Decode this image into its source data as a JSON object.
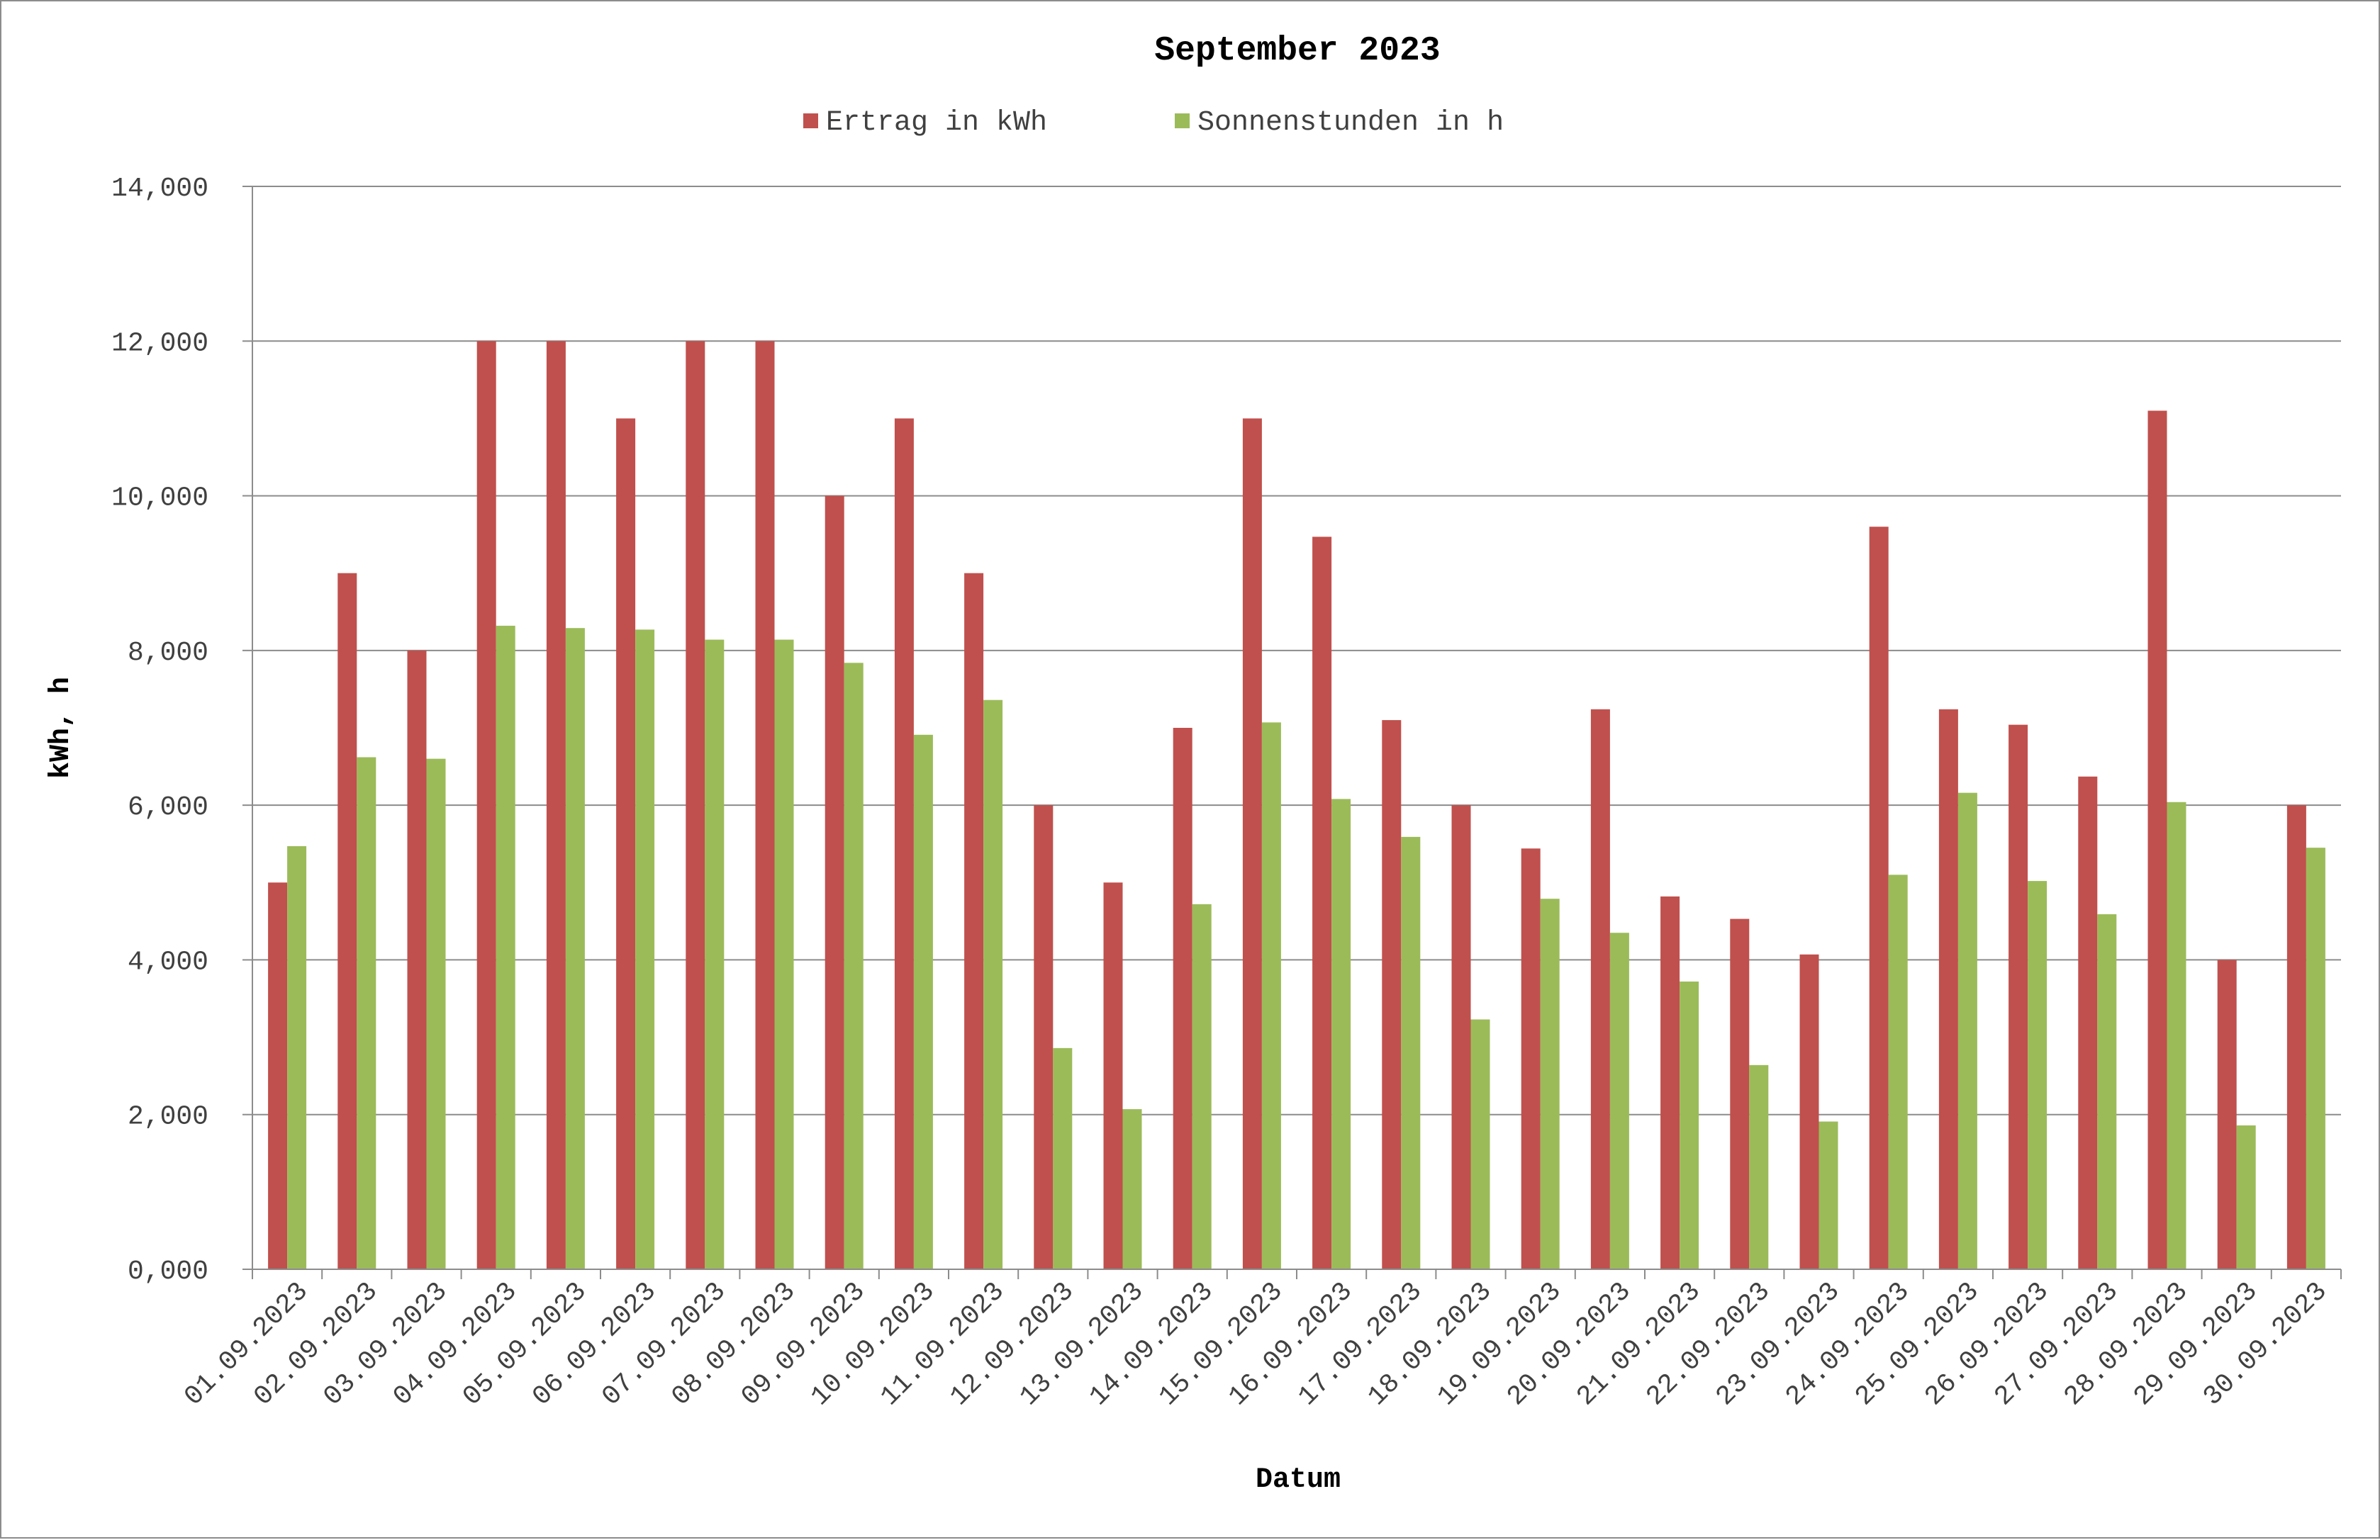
{
  "chart_data": {
    "type": "bar",
    "title": "September 2023",
    "xlabel": "Datum",
    "ylabel": "kWh, h",
    "ylim": [
      0,
      14
    ],
    "yticks": [
      "0,000",
      "2,000",
      "4,000",
      "6,000",
      "8,000",
      "10,000",
      "12,000",
      "14,000"
    ],
    "grid": true,
    "legend_position": "top",
    "categories": [
      "01.09.2023",
      "02.09.2023",
      "03.09.2023",
      "04.09.2023",
      "05.09.2023",
      "06.09.2023",
      "07.09.2023",
      "08.09.2023",
      "09.09.2023",
      "10.09.2023",
      "11.09.2023",
      "12.09.2023",
      "13.09.2023",
      "14.09.2023",
      "15.09.2023",
      "16.09.2023",
      "17.09.2023",
      "18.09.2023",
      "19.09.2023",
      "20.09.2023",
      "21.09.2023",
      "22.09.2023",
      "23.09.2023",
      "24.09.2023",
      "25.09.2023",
      "26.09.2023",
      "27.09.2023",
      "28.09.2023",
      "29.09.2023",
      "30.09.2023"
    ],
    "series": [
      {
        "name": "Ertrag in kWh",
        "color": "#c0504d",
        "values": [
          5.0,
          9.0,
          8.0,
          12.0,
          12.0,
          11.0,
          12.0,
          12.0,
          10.0,
          11.0,
          9.0,
          6.0,
          5.0,
          7.0,
          11.0,
          9.47,
          7.1,
          6.0,
          5.44,
          7.24,
          4.82,
          4.53,
          4.07,
          9.6,
          7.24,
          7.04,
          6.37,
          11.1,
          4.0,
          6.0
        ]
      },
      {
        "name": "Sonnenstunden in h",
        "color": "#9bbb59",
        "values": [
          5.47,
          6.62,
          6.6,
          8.32,
          8.29,
          8.27,
          8.14,
          8.14,
          7.84,
          6.91,
          7.36,
          2.86,
          2.07,
          4.72,
          7.07,
          6.08,
          5.59,
          3.23,
          4.79,
          4.35,
          3.72,
          2.64,
          1.91,
          5.1,
          6.16,
          5.02,
          4.59,
          6.04,
          1.86,
          5.45
        ]
      }
    ]
  }
}
